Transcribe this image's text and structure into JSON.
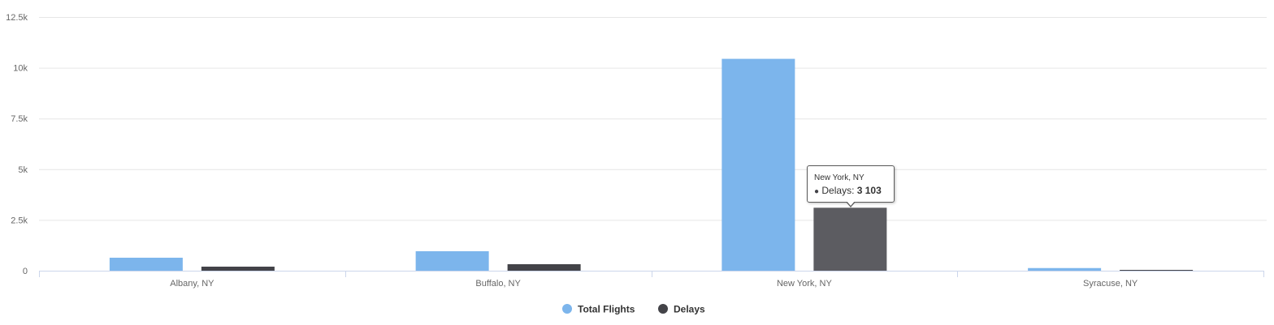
{
  "chart_data": {
    "type": "bar",
    "categories": [
      "Albany, NY",
      "Buffalo, NY",
      "New York, NY",
      "Syracuse, NY"
    ],
    "series": [
      {
        "name": "Total Flights",
        "color": "#7cb5ec",
        "values": [
          640,
          960,
          10440,
          130
        ]
      },
      {
        "name": "Delays",
        "color": "#434348",
        "values": [
          200,
          320,
          3103,
          40
        ]
      }
    ],
    "yticks": [
      "0",
      "2.5k",
      "5k",
      "7.5k",
      "10k",
      "12.5k"
    ],
    "ylim": [
      0,
      12500
    ],
    "grid": true,
    "legend_position": "bottom-center",
    "highlighted": {
      "series": 1,
      "category": 2,
      "color": "#5c5c61"
    }
  },
  "tooltip": {
    "title": "New York, NY",
    "marker": "●",
    "series_label": "Delays: ",
    "value": "3 103"
  }
}
